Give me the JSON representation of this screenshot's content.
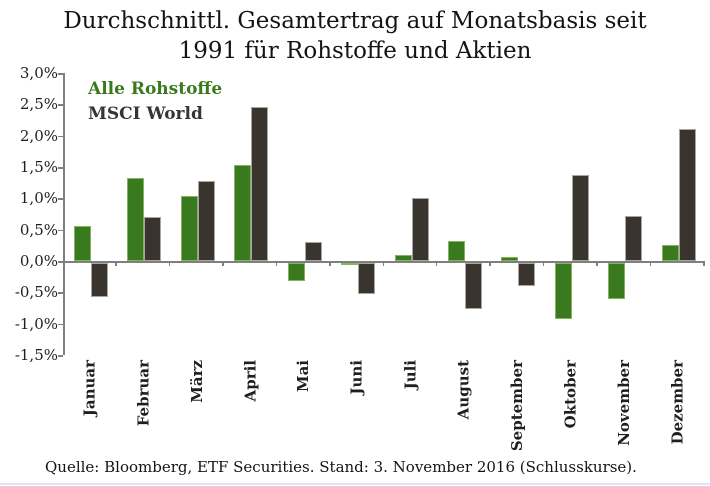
{
  "title": {
    "line1": "Durchschnittl. Gesamtertrag auf Monatsbasis seit",
    "line2": "1991 für Rohstoffe und Aktien"
  },
  "legend": {
    "items": [
      {
        "label": "Alle Rohstoffe",
        "color": "#3a7a1e"
      },
      {
        "label": "MSCI World",
        "color": "#3a342f"
      }
    ],
    "position": "top-left-inside"
  },
  "chart_data": {
    "type": "bar",
    "title": "Durchschnittl. Gesamtertrag auf Monatsbasis seit 1991 für Rohstoffe und Aktien",
    "categories": [
      "Januar",
      "Februar",
      "März",
      "April",
      "Mai",
      "Juni",
      "Juli",
      "August",
      "September",
      "Oktober",
      "November",
      "Dezember"
    ],
    "series": [
      {
        "name": "Alle Rohstoffe",
        "color": "#3a7a1e",
        "border_color": "#86b261",
        "values": [
          0.56,
          1.33,
          1.03,
          1.53,
          -0.29,
          -0.04,
          0.1,
          0.32,
          0.06,
          -0.9,
          -0.58,
          0.26
        ]
      },
      {
        "name": "MSCI World",
        "color": "#3a342f",
        "border_color": "#a8a5a2",
        "values": [
          -0.55,
          0.71,
          1.28,
          2.45,
          0.31,
          -0.5,
          1.0,
          -0.74,
          -0.37,
          1.37,
          0.72,
          2.1
        ]
      }
    ],
    "ylabel": "",
    "xlabel": "",
    "ylim": [
      -1.5,
      3.0
    ],
    "ytick_step": 0.5,
    "ytick_labels": [
      "3,0%",
      "2,5%",
      "2,0%",
      "1,5%",
      "1,0%",
      "0,5%",
      "0,0%",
      "-0,5%",
      "-1,0%",
      "-1,5%"
    ],
    "grid": false,
    "axis_color": "#7f7f7f",
    "legend_position": "upper left"
  },
  "footer": {
    "source": "Quelle: Bloomberg, ETF Securities. Stand: 3. November 2016 (Schlusskurse)."
  },
  "decor": {
    "bottom_rule_color": "#dde5ee"
  }
}
